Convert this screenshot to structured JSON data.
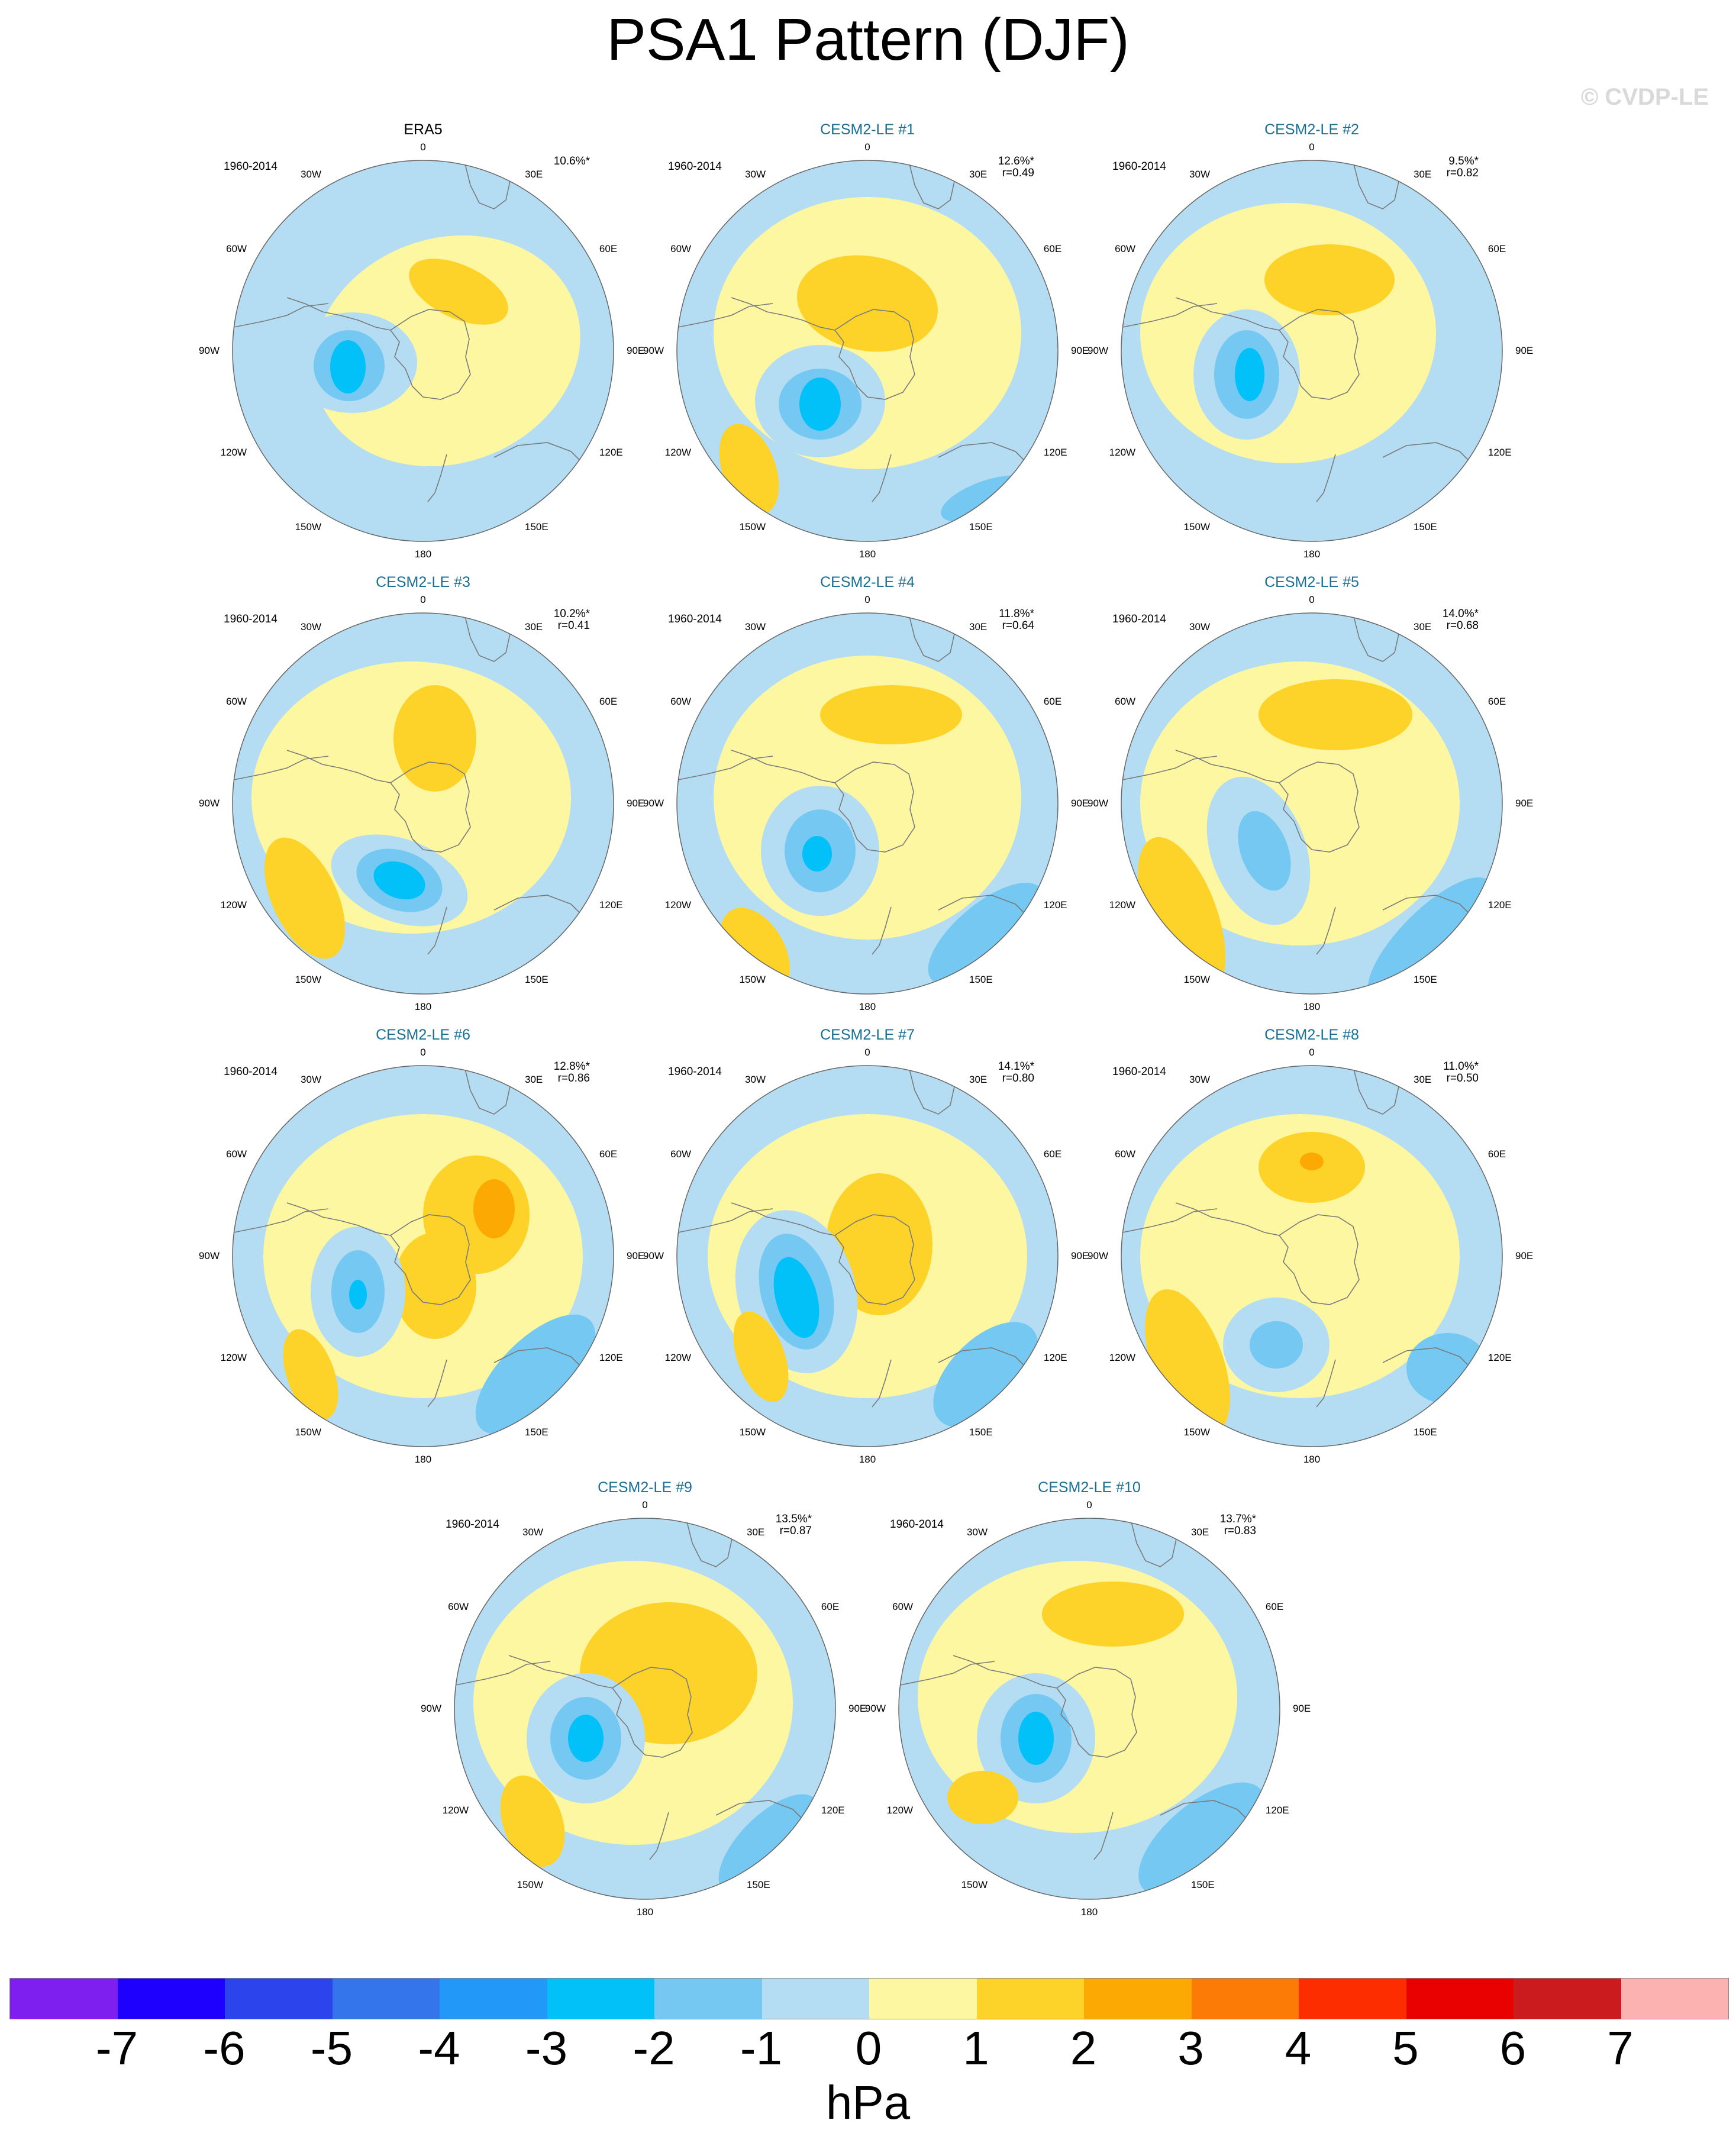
{
  "title": "PSA1 Pattern (DJF)",
  "watermark": "© CVDP-LE",
  "lon_labels": {
    "n": "0",
    "s": "180",
    "e": "90E",
    "w": "90W",
    "e30": "30E",
    "w30": "30W",
    "e60": "60E",
    "w60": "60W",
    "e120": "120E",
    "w120": "120W",
    "e150": "150E",
    "w150": "150W"
  },
  "panels": [
    {
      "title": "ERA5",
      "period": "1960-2014",
      "pct": "10.6%*",
      "r": "",
      "is_obs": true
    },
    {
      "title": "CESM2-LE #1",
      "period": "1960-2014",
      "pct": "12.6%*",
      "r": "r=0.49",
      "is_obs": false
    },
    {
      "title": "CESM2-LE #2",
      "period": "1960-2014",
      "pct": "9.5%*",
      "r": "r=0.82",
      "is_obs": false
    },
    {
      "title": "CESM2-LE #3",
      "period": "1960-2014",
      "pct": "10.2%*",
      "r": "r=0.41",
      "is_obs": false
    },
    {
      "title": "CESM2-LE #4",
      "period": "1960-2014",
      "pct": "11.8%*",
      "r": "r=0.64",
      "is_obs": false
    },
    {
      "title": "CESM2-LE #5",
      "period": "1960-2014",
      "pct": "14.0%*",
      "r": "r=0.68",
      "is_obs": false
    },
    {
      "title": "CESM2-LE #6",
      "period": "1960-2014",
      "pct": "12.8%*",
      "r": "r=0.86",
      "is_obs": false
    },
    {
      "title": "CESM2-LE #7",
      "period": "1960-2014",
      "pct": "14.1%*",
      "r": "r=0.80",
      "is_obs": false
    },
    {
      "title": "CESM2-LE #8",
      "period": "1960-2014",
      "pct": "11.0%*",
      "r": "r=0.50",
      "is_obs": false
    },
    {
      "title": "CESM2-LE #9",
      "period": "1960-2014",
      "pct": "13.5%*",
      "r": "r=0.87",
      "is_obs": false
    },
    {
      "title": "CESM2-LE #10",
      "period": "1960-2014",
      "pct": "13.7%*",
      "r": "r=0.83",
      "is_obs": false
    }
  ],
  "colorbar": {
    "colors": [
      "#7f1fef",
      "#1e00ff",
      "#2c44eb",
      "#3575ec",
      "#2299f9",
      "#02c1f8",
      "#74c8f2",
      "#b4ddf3",
      "#fef7a1",
      "#fdd32a",
      "#fca904",
      "#fb7b06",
      "#fd2d00",
      "#e90000",
      "#cb1b1e",
      "#fdb2b2"
    ],
    "ticks": [
      "-7",
      "-6",
      "-5",
      "-4",
      "-3",
      "-2",
      "-1",
      "0",
      "1",
      "2",
      "3",
      "4",
      "5",
      "6",
      "7"
    ],
    "units": "hPa"
  },
  "colors": {
    "panel_title_model": "#1a6f94",
    "panel_title_obs": "#000000",
    "neg1": "#b4ddf3",
    "neg2": "#74c8f2",
    "neg3": "#02c1f8",
    "neg4": "#2299f9",
    "pos1": "#fef7a1",
    "pos2": "#fdd32a",
    "pos3": "#fca904",
    "coast": "#7a7a7a"
  }
}
